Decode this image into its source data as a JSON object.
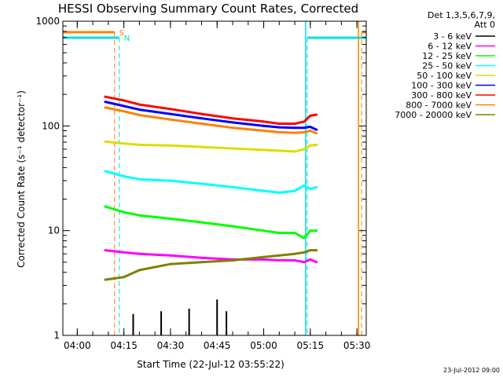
{
  "chart_data": {
    "type": "line",
    "title": "HESSI Observing Summary Count Rates, Corrected",
    "xlabel": "Start Time (22-Jul-12 03:55:22)",
    "ylabel": "Corrected Count Rate (s⁻¹ detector⁻¹)",
    "yscale": "log",
    "ylim": [
      1,
      1000
    ],
    "xlim": [
      "03:55:22",
      "05:33:00"
    ],
    "x_ticks": [
      "04:00",
      "04:15",
      "04:30",
      "04:45",
      "05:00",
      "05:15",
      "05:30"
    ],
    "y_ticks": [
      "1",
      "10",
      "100",
      "1000"
    ],
    "legend_header": [
      "Det 1,3,5,6,7,9,",
      "Att 0"
    ],
    "legend_placement": "right",
    "timestamp": "23-Jul-2012 09:00",
    "flags": [
      {
        "name": "S",
        "color": "#ff8000",
        "start": "04:12:00",
        "end": "05:31:30"
      },
      {
        "name": "N",
        "color": "#00e0e0",
        "start": "04:13:30",
        "end": "05:14:00"
      }
    ],
    "x": [
      "04:09",
      "04:15",
      "04:20",
      "04:30",
      "04:40",
      "04:50",
      "05:00",
      "05:05",
      "05:10",
      "05:13",
      "05:15",
      "05:17"
    ],
    "series": [
      {
        "name": "3 - 6 keV",
        "color": "#000000",
        "x": [
          "04:18",
          "04:27",
          "04:36",
          "04:45",
          "04:48"
        ],
        "values": [
          1.6,
          1.7,
          1.8,
          2.2,
          1.7
        ]
      },
      {
        "name": "6 - 12 keV",
        "color": "#ff00ff",
        "values": [
          6.5,
          6.2,
          6.0,
          5.8,
          5.5,
          5.3,
          5.3,
          5.2,
          5.2,
          5.0,
          5.3,
          5.0
        ]
      },
      {
        "name": "12 - 25 keV",
        "color": "#00ff00",
        "values": [
          17,
          15,
          14,
          13,
          12,
          11,
          10,
          9.5,
          9.5,
          8.5,
          10,
          10
        ]
      },
      {
        "name": "25 - 50 keV",
        "color": "#00ffff",
        "values": [
          37,
          33,
          31,
          30,
          28,
          26,
          24,
          23,
          24,
          27,
          25,
          26
        ]
      },
      {
        "name": "50 - 100 keV",
        "color": "#dddd00",
        "values": [
          71,
          68,
          66,
          65,
          63,
          61,
          59,
          58,
          57,
          60,
          65,
          66
        ]
      },
      {
        "name": "100 - 300 keV",
        "color": "#0000ff",
        "values": [
          170,
          155,
          143,
          130,
          118,
          108,
          100,
          97,
          96,
          96,
          98,
          92
        ]
      },
      {
        "name": "300 - 800 keV",
        "color": "#ff0000",
        "values": [
          190,
          175,
          160,
          145,
          130,
          118,
          110,
          105,
          105,
          110,
          125,
          128
        ]
      },
      {
        "name": "800 - 7000 keV",
        "color": "#ff8000",
        "values": [
          150,
          138,
          127,
          115,
          105,
          96,
          90,
          87,
          86,
          87,
          90,
          85
        ]
      },
      {
        "name": "7000 - 20000 keV",
        "color": "#808000",
        "values": [
          3.4,
          3.6,
          4.2,
          4.8,
          5.0,
          5.2,
          5.6,
          5.8,
          6.0,
          6.2,
          6.5,
          6.5
        ]
      }
    ]
  }
}
